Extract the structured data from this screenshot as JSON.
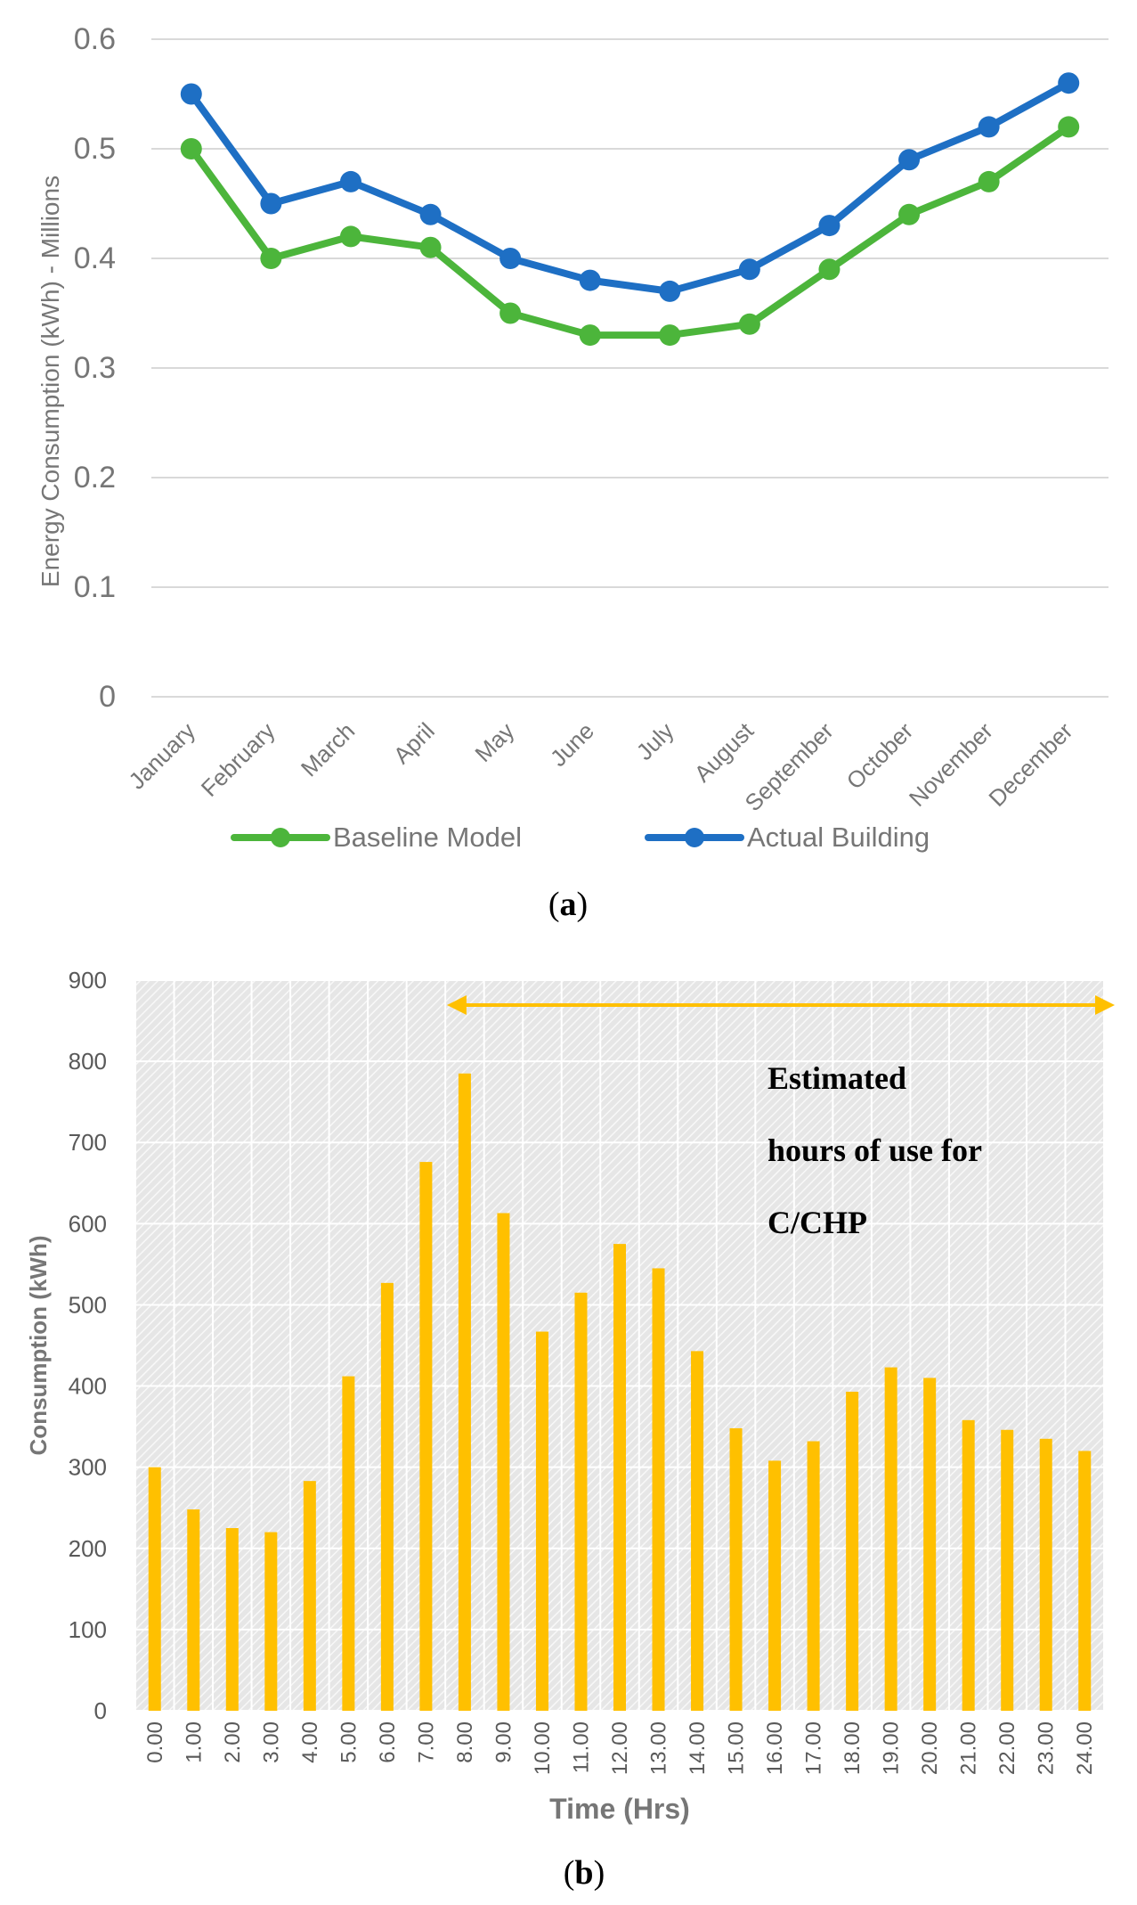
{
  "colors": {
    "baseline": "#4cb53b",
    "actual": "#1e6fc4",
    "bars": "#ffc000",
    "arrow": "#ffc000",
    "gridA": "#d9d9d9",
    "axisText": "#767676",
    "hatchBg": "#e6e6e6",
    "hatchLine": "#f8f8f8",
    "gridB": "#ffffff"
  },
  "chart_data": [
    {
      "type": "line",
      "panel_label": "a",
      "title": "",
      "xlabel": "",
      "ylabel": "Energy Consumption (kWh) - Millions",
      "ylim": [
        0,
        0.6
      ],
      "yticks": [
        "0",
        "0.1",
        "0.2",
        "0.3",
        "0.4",
        "0.5",
        "0.6"
      ],
      "categories": [
        "January",
        "February",
        "March",
        "April",
        "May",
        "June",
        "July",
        "August",
        "September",
        "October",
        "November",
        "December"
      ],
      "series": [
        {
          "name": "Baseline Model",
          "values": [
            0.5,
            0.4,
            0.42,
            0.41,
            0.35,
            0.33,
            0.33,
            0.34,
            0.39,
            0.44,
            0.47,
            0.52
          ]
        },
        {
          "name": "Actual Building",
          "values": [
            0.55,
            0.45,
            0.47,
            0.44,
            0.4,
            0.38,
            0.37,
            0.39,
            0.43,
            0.49,
            0.52,
            0.56
          ]
        }
      ],
      "legend_position": "bottom",
      "grid": true
    },
    {
      "type": "bar",
      "panel_label": "b",
      "title": "",
      "xlabel": "Time (Hrs)",
      "ylabel": "Consumption (kWh)",
      "ylim": [
        0,
        900
      ],
      "yticks": [
        "0",
        "100",
        "200",
        "300",
        "400",
        "500",
        "600",
        "700",
        "800",
        "900"
      ],
      "categories": [
        "0.00",
        "1.00",
        "2.00",
        "3.00",
        "4.00",
        "5.00",
        "6.00",
        "7.00",
        "8.00",
        "9.00",
        "10.00",
        "11.00",
        "12.00",
        "13.00",
        "14.00",
        "15.00",
        "16.00",
        "17.00",
        "18.00",
        "19.00",
        "20.00",
        "21.00",
        "22.00",
        "23.00",
        "24.00"
      ],
      "values": [
        300,
        248,
        225,
        220,
        283,
        412,
        527,
        676,
        785,
        613,
        467,
        515,
        575,
        545,
        443,
        348,
        308,
        332,
        393,
        423,
        410,
        358,
        346,
        335,
        320
      ],
      "annotation": {
        "lines": [
          "Estimated",
          "hours of use for",
          "C/CHP"
        ],
        "arrow_from_category": "8.00",
        "arrow_to_category": "24.00"
      },
      "grid": true
    }
  ]
}
